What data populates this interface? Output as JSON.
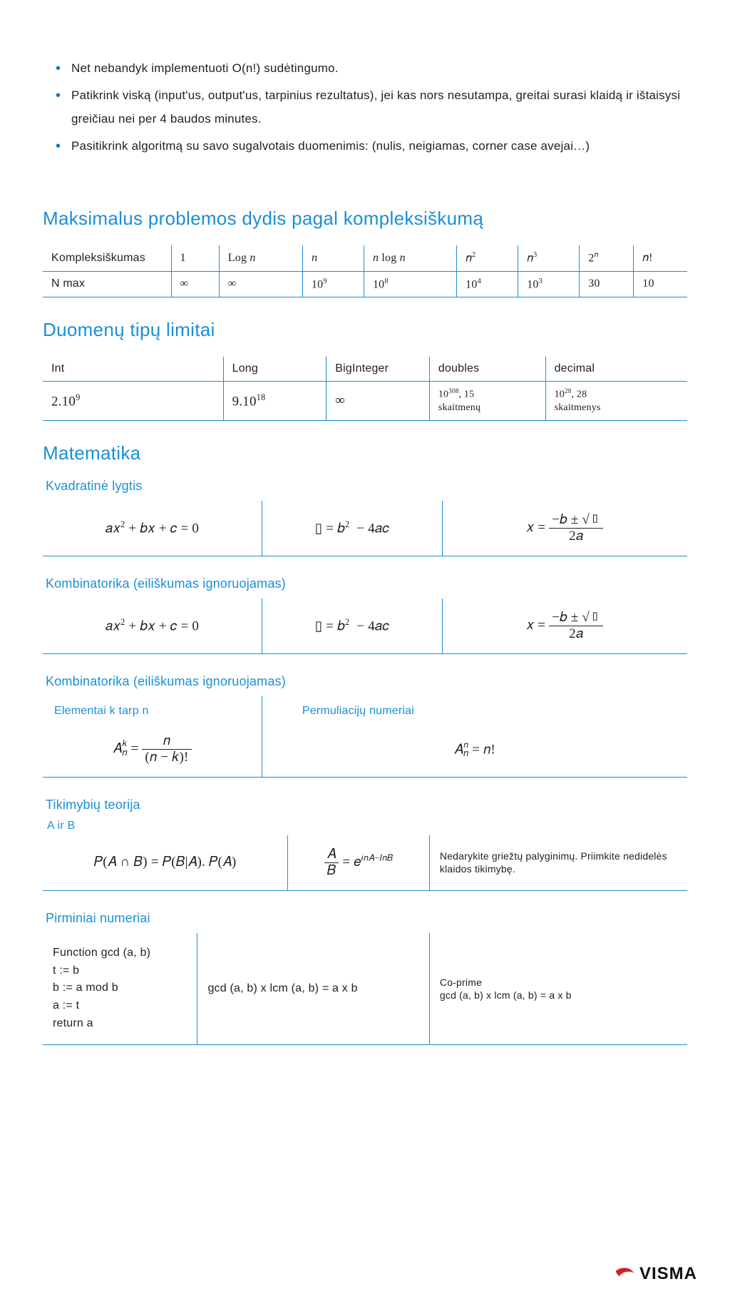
{
  "bullets": [
    "Net nebandyk implementuoti O(n!) sudėtingumo.",
    "Patikrink viską (input'us, output'us, tarpinius rezultatus), jei kas nors nesutampa, greitai surasi klaidą ir ištaisysi greičiau nei per 4 baudos minutes.",
    "Pasitikrink algoritmą su savo sugalvotais duomenimis: (nulis, neigiamas, corner case avejai…)"
  ],
  "complexity": {
    "title": "Maksimalus problemos dydis pagal kompleksiškumą",
    "row_labels": [
      "Kompleksiškumas",
      "N max"
    ],
    "headers_html": [
      "1",
      "Log <i>n</i>",
      "<i>n</i>",
      "<i>n</i> log <i>n</i>",
      "𝑛<sup>2</sup>",
      "𝑛<sup>3</sup>",
      "2<sup>𝑛</sup>",
      "𝑛!"
    ],
    "values_html": [
      "∞",
      "∞",
      "10<sup>9</sup>",
      "10<sup>8</sup>",
      "10<sup>4</sup>",
      "10<sup>3</sup>",
      "30",
      "10"
    ]
  },
  "limits": {
    "title": "Duomenų tipų limitai",
    "headers": [
      "Int",
      "Long",
      "BigInteger",
      "doubles",
      "decimal"
    ],
    "values_html": [
      "2.10<sup>9</sup>",
      "9.10<sup>18</sup>",
      "∞",
      "10<sup>308</sup>, 15<br><span class='small'>skaitmenų</span>",
      "10<sup>28</sup>, 28<br><span class='small'>skaitmenys</span>"
    ]
  },
  "math": {
    "title": "Matematika",
    "quadratic": {
      "title": "Kvadratinė lygtis",
      "cells_html": [
        "𝑎𝑥<sup>2</sup> + 𝑏𝑥 + 𝑐 = 0",
        "▯ = 𝑏<sup>2</sup>&nbsp; − 4𝑎𝑐",
        "𝑥 = <span class='frac'><span class='num'>−𝑏 ± √▯</span><span class='den'>2𝑎</span></span>"
      ]
    },
    "komb1": {
      "title": "Kombinatorika (eiliškumas ignoruojamas)",
      "cells_html": [
        "𝑎𝑥<sup>2</sup> + 𝑏𝑥 + 𝑐 = 0",
        "▯ = 𝑏<sup>2</sup>&nbsp; − 4𝑎𝑐",
        "𝑥 = <span class='frac'><span class='num'>−𝑏 ± √▯</span><span class='den'>2𝑎</span></span>"
      ]
    },
    "komb2": {
      "title": "Kombinatorika (eiliškumas ignoruojamas)",
      "h1": "Elementai k tarp n",
      "h2": "Permuliacijų numeriai",
      "c1_html": "𝐴<span style='display:inline-block;vertical-align:-0.2em;line-height:0.9;'><sup style='display:block'>𝑘</sup><sub style='display:block'>𝑛</sub></span> = <span class='frac'><span class='num'>𝑛</span><span class='den'>(𝑛 − 𝑘)!</span></span>",
      "c2_html": "𝐴<span style='display:inline-block;vertical-align:-0.2em;line-height:0.9;'><sup style='display:block'>𝑛</sup><sub style='display:block'>𝑛</sub></span> = 𝑛!"
    },
    "prob": {
      "title": "Tikimybių teorija",
      "sub": "A ir B",
      "c1_html": "𝑃(𝐴 ∩ 𝐵) = 𝑃(𝐵|𝐴). 𝑃(𝐴)",
      "c2_html": "<span class='frac'><span class='num'>𝐴</span><span class='den'>𝐵</span></span> = 𝑒<sup>𝑖𝑛𝐴−𝐼𝑛𝐵</sup>",
      "c3": "Nedarykite griežtų palyginimų. Priimkite nedidelės klaidos tikimybę."
    },
    "prime": {
      "title": "Pirminiai numeriai",
      "c1_lines": [
        "Function gcd (a, b)",
        "t := b",
        "b := a mod b",
        "a := t",
        "return a"
      ],
      "c2": "gcd (a, b) x lcm (a, b) = a x b",
      "c3_lines": [
        "Co-prime",
        "gcd (a, b) x lcm (a, b) = a x b"
      ]
    }
  },
  "logo_text": "VISMA",
  "colors": {
    "accent": "#1a8fd6",
    "logo_red": "#d91b2a"
  }
}
